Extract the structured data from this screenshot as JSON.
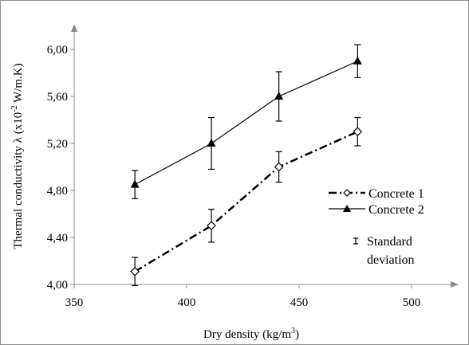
{
  "chart_data": {
    "type": "line",
    "title": "",
    "xlabel": "Dry density (kg/m",
    "xlabel_sup": "3",
    "xlabel_tail": ")",
    "ylabel": "Thermal conductivity λ (x10",
    "ylabel_sup": "-2",
    "ylabel_tail": " W/m.K)",
    "xlim": [
      350,
      500
    ],
    "ylim": [
      4.0,
      6.0
    ],
    "xticks": [
      "350",
      "400",
      "450",
      "500"
    ],
    "yticks": [
      "4,00",
      "4,40",
      "4,80",
      "5,20",
      "5,60",
      "6,00"
    ],
    "grid": false,
    "legend_position": "right",
    "series": [
      {
        "name": "Concrete 1",
        "style": "dash-dot",
        "marker": "diamond-open",
        "x": [
          377,
          411,
          441,
          476
        ],
        "y": [
          4.11,
          4.5,
          5.0,
          5.3
        ],
        "error": [
          0.12,
          0.14,
          0.13,
          0.12
        ]
      },
      {
        "name": "Concrete 2",
        "style": "solid",
        "marker": "triangle-filled",
        "x": [
          377,
          411,
          441,
          476
        ],
        "y": [
          4.85,
          5.2,
          5.6,
          5.9
        ],
        "error": [
          0.12,
          0.22,
          0.21,
          0.14
        ]
      }
    ],
    "legend_extra": [
      "Standard",
      "deviation"
    ],
    "colors": {
      "axis": "#8c8c8c",
      "series": "#000000"
    }
  }
}
